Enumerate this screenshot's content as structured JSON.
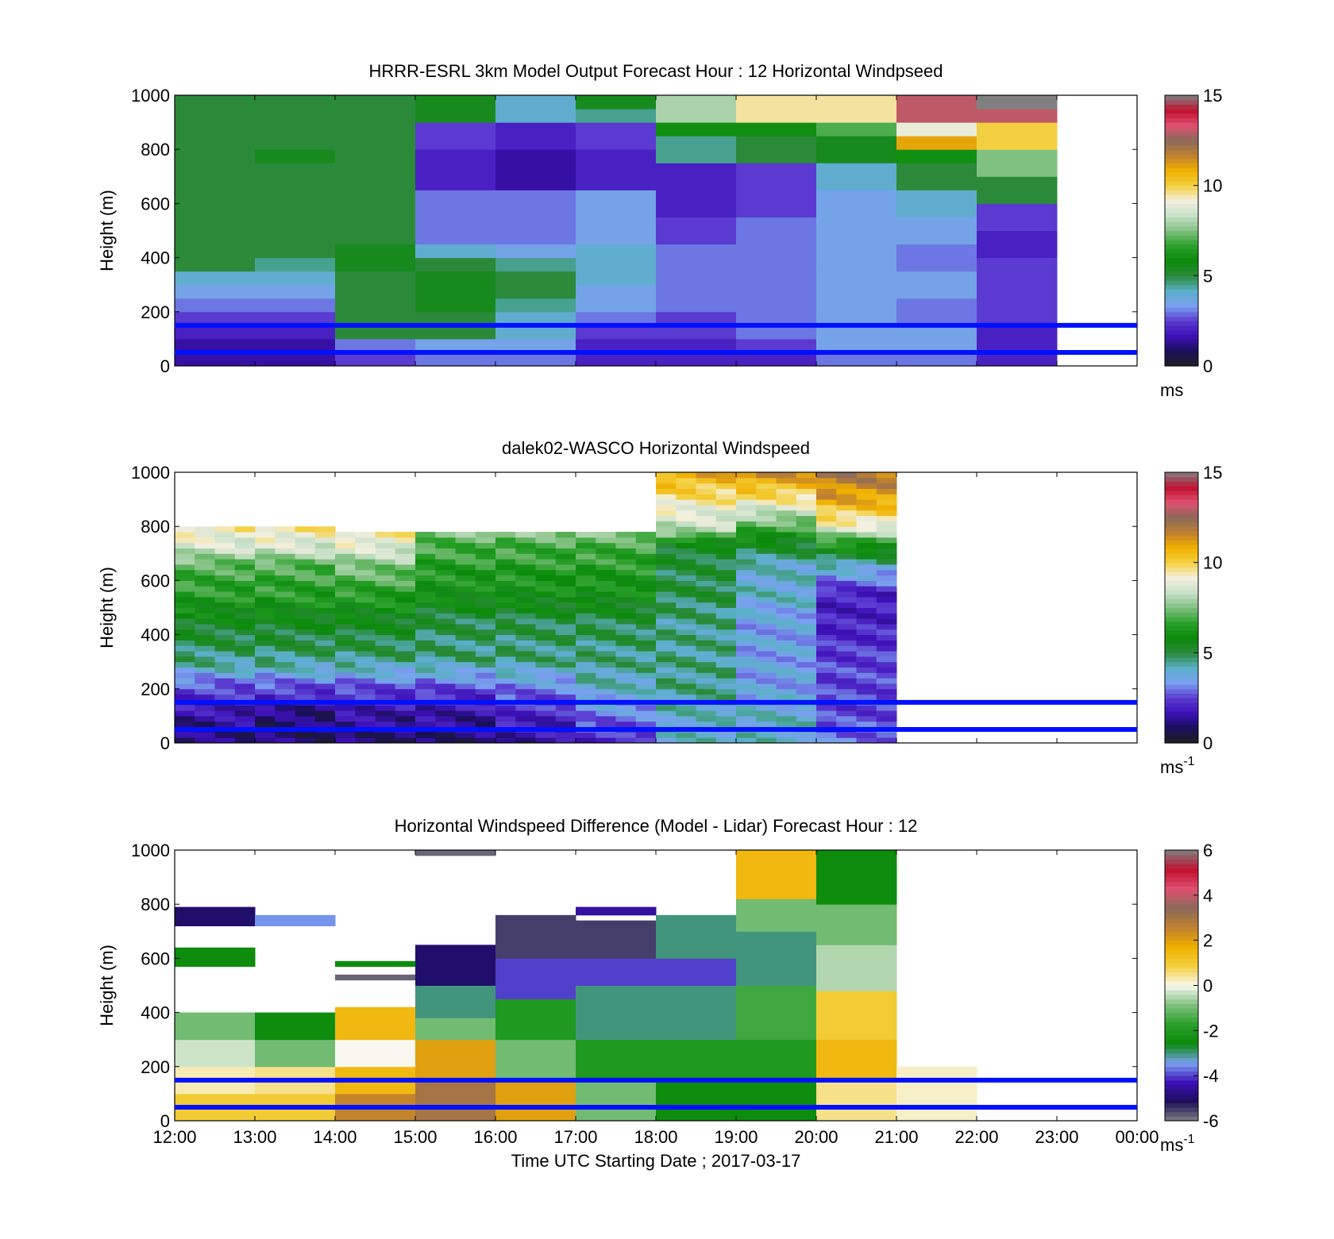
{
  "colors": {
    "reference_lines": "#0010ff",
    "speed_colormap": [
      "#202020",
      "#1a0f5a",
      "#3d10b8",
      "#5a3ad0",
      "#7aa0f0",
      "#5ab0c8",
      "#2a8a3a",
      "#0a8a0a",
      "#2aa02a",
      "#80c080",
      "#c8e0c8",
      "#f4f0e0",
      "#f4d040",
      "#f0b000",
      "#c08030",
      "#8a6a5a",
      "#e05070",
      "#c01030",
      "#808080"
    ],
    "diff_colormap": [
      "#808080",
      "#1a0f5a",
      "#3d10b8",
      "#7aa0f0",
      "#0a8a0a",
      "#2aa02a",
      "#80c080",
      "#f8f8f0",
      "#f4d040",
      "#f0b000",
      "#c08030",
      "#8a6a5a",
      "#e05070",
      "#c01030",
      "#808080"
    ]
  },
  "chart_data": [
    {
      "type": "heatmap",
      "title": "HRRR-ESRL 3km Model Output   Forecast Hour : 12 Horizontal Windpseed",
      "ylabel": "Height (m)",
      "ylim": [
        0,
        1000
      ],
      "yticks": [
        "0",
        "200",
        "400",
        "600",
        "800",
        "1000"
      ],
      "x": [
        "12:00",
        "13:00",
        "14:00",
        "15:00",
        "16:00",
        "17:00",
        "18:00",
        "19:00",
        "20:00",
        "21:00",
        "22:00"
      ],
      "heights": [
        0,
        50,
        100,
        150,
        200,
        250,
        300,
        350,
        400,
        450,
        500,
        550,
        600,
        650,
        700,
        750,
        800,
        850,
        900,
        950
      ],
      "colorbar": {
        "min": 0,
        "max": 15,
        "ticks": [
          "0",
          "5",
          "10",
          "15"
        ],
        "unit": "ms"
      },
      "reference_lines_m": [
        150,
        50
      ],
      "values": [
        [
          1.5,
          1.5,
          2.0,
          2.5,
          3.0,
          3.5,
          4.0,
          5.0,
          5.0,
          5.0,
          5.0,
          5.0,
          5.0,
          5.0,
          5.0,
          5.0,
          5.0,
          5.0,
          5.0,
          5.0
        ],
        [
          1.5,
          1.5,
          2.0,
          2.5,
          3.0,
          3.5,
          4.0,
          4.5,
          5.0,
          5.0,
          5.0,
          5.0,
          5.0,
          5.0,
          5.0,
          5.5,
          5.0,
          5.0,
          5.0,
          5.0
        ],
        [
          2.5,
          3.0,
          5.0,
          5.0,
          5.0,
          5.0,
          5.0,
          5.5,
          5.5,
          5.0,
          5.0,
          5.0,
          5.0,
          5.0,
          5.0,
          5.0,
          5.0,
          5.0,
          5.0,
          5.0
        ],
        [
          3.0,
          3.5,
          5.0,
          5.0,
          5.5,
          5.5,
          5.5,
          5.0,
          4.0,
          3.0,
          3.0,
          3.0,
          3.0,
          2.0,
          2.0,
          2.0,
          2.5,
          2.5,
          5.5,
          5.5
        ],
        [
          3.0,
          3.5,
          4.0,
          4.0,
          4.5,
          5.0,
          5.0,
          4.5,
          3.5,
          3.0,
          3.0,
          3.0,
          3.0,
          1.5,
          1.5,
          1.5,
          2.0,
          2.0,
          4.0,
          4.0
        ],
        [
          2.0,
          2.0,
          2.5,
          3.0,
          3.5,
          3.5,
          4.0,
          4.0,
          4.0,
          3.5,
          3.5,
          3.5,
          3.5,
          2.0,
          2.0,
          2.0,
          2.5,
          2.5,
          4.5,
          5.5
        ],
        [
          2.0,
          2.0,
          2.5,
          2.5,
          3.0,
          3.0,
          3.0,
          3.0,
          3.0,
          2.5,
          2.5,
          2.0,
          2.0,
          2.0,
          2.0,
          4.5,
          4.5,
          6.0,
          8.0,
          8.0
        ],
        [
          2.0,
          2.5,
          3.0,
          3.0,
          3.0,
          3.0,
          3.0,
          3.0,
          3.0,
          3.0,
          3.0,
          2.5,
          2.5,
          2.5,
          2.5,
          5.0,
          5.0,
          6.0,
          9.5,
          9.5
        ],
        [
          3.0,
          3.5,
          3.5,
          3.5,
          3.5,
          3.5,
          3.5,
          3.5,
          3.5,
          3.5,
          3.5,
          3.5,
          3.5,
          4.0,
          4.0,
          5.5,
          5.5,
          7.0,
          9.5,
          9.5
        ],
        [
          3.0,
          3.5,
          3.5,
          3.0,
          3.0,
          3.5,
          3.5,
          3.0,
          3.0,
          3.5,
          3.5,
          4.0,
          4.0,
          5.0,
          5.0,
          6.0,
          11.0,
          9.0,
          13.0,
          13.0
        ],
        [
          2.0,
          2.0,
          2.0,
          2.5,
          2.5,
          2.5,
          2.5,
          2.5,
          2.0,
          2.0,
          2.5,
          2.5,
          5.0,
          5.0,
          7.5,
          7.5,
          10.0,
          10.0,
          13.0,
          15.0
        ]
      ]
    },
    {
      "type": "heatmap",
      "title": "dalek02-WASCO  Horizontal Windspeed",
      "ylabel": "Height (m)",
      "ylim": [
        0,
        1000
      ],
      "yticks": [
        "0",
        "200",
        "400",
        "600",
        "800",
        "1000"
      ],
      "x_range_hours": [
        12,
        21
      ],
      "colorbar": {
        "min": 0,
        "max": 15,
        "ticks": [
          "0",
          "5",
          "10",
          "15"
        ],
        "unit": "ms",
        "unit_exponent": "-1"
      },
      "reference_lines_m": [
        150,
        50
      ],
      "profiles": [
        {
          "hour": 12,
          "speeds_by_height": [
            [
              0,
              1.0
            ],
            [
              100,
              1.5
            ],
            [
              200,
              2.5
            ],
            [
              300,
              4.5
            ],
            [
              450,
              5.5
            ],
            [
              550,
              6.5
            ],
            [
              650,
              7.0
            ],
            [
              720,
              8.5
            ],
            [
              800,
              9.5
            ]
          ]
        },
        {
          "hour": 13,
          "speeds_by_height": [
            [
              0,
              1.0
            ],
            [
              100,
              1.0
            ],
            [
              200,
              2.5
            ],
            [
              300,
              4.5
            ],
            [
              450,
              5.5
            ],
            [
              550,
              6.5
            ],
            [
              650,
              7.0
            ],
            [
              720,
              8.5
            ],
            [
              790,
              9.5
            ]
          ]
        },
        {
          "hour": 14,
          "speeds_by_height": [
            [
              0,
              1.0
            ],
            [
              100,
              1.5
            ],
            [
              200,
              2.5
            ],
            [
              300,
              4.5
            ],
            [
              450,
              5.5
            ],
            [
              550,
              6.5
            ],
            [
              650,
              7.5
            ],
            [
              740,
              9.0
            ],
            [
              780,
              9.5
            ]
          ]
        },
        {
          "hour": 15,
          "speeds_by_height": [
            [
              0,
              1.0
            ],
            [
              100,
              1.5
            ],
            [
              200,
              2.5
            ],
            [
              300,
              4.5
            ],
            [
              450,
              5.0
            ],
            [
              550,
              6.0
            ],
            [
              650,
              6.5
            ],
            [
              740,
              7.0
            ],
            [
              770,
              7.5
            ]
          ]
        },
        {
          "hour": 16,
          "speeds_by_height": [
            [
              0,
              1.5
            ],
            [
              100,
              2.0
            ],
            [
              200,
              3.0
            ],
            [
              300,
              4.5
            ],
            [
              450,
              5.0
            ],
            [
              550,
              6.0
            ],
            [
              650,
              6.5
            ],
            [
              740,
              7.0
            ],
            [
              770,
              7.5
            ]
          ]
        },
        {
          "hour": 17,
          "speeds_by_height": [
            [
              0,
              2.0
            ],
            [
              100,
              3.0
            ],
            [
              200,
              4.0
            ],
            [
              300,
              4.5
            ],
            [
              450,
              5.0
            ],
            [
              550,
              6.0
            ],
            [
              650,
              6.5
            ],
            [
              740,
              7.0
            ],
            [
              770,
              7.5
            ]
          ]
        },
        {
          "hour": 18,
          "speeds_by_height": [
            [
              0,
              4.0
            ],
            [
              100,
              4.0
            ],
            [
              200,
              4.5
            ],
            [
              300,
              4.5
            ],
            [
              450,
              4.5
            ],
            [
              550,
              5.0
            ],
            [
              650,
              5.0
            ],
            [
              740,
              5.5
            ],
            [
              780,
              8.0
            ],
            [
              900,
              9.5
            ],
            [
              1000,
              11.0
            ]
          ]
        },
        {
          "hour": 19,
          "speeds_by_height": [
            [
              0,
              4.0
            ],
            [
              100,
              4.0
            ],
            [
              200,
              3.5
            ],
            [
              300,
              3.5
            ],
            [
              450,
              3.5
            ],
            [
              550,
              4.0
            ],
            [
              650,
              4.0
            ],
            [
              740,
              5.5
            ],
            [
              800,
              7.0
            ],
            [
              900,
              9.5
            ],
            [
              1000,
              11.5
            ]
          ]
        },
        {
          "hour": 20,
          "speeds_by_height": [
            [
              0,
              3.0
            ],
            [
              100,
              2.5
            ],
            [
              200,
              2.5
            ],
            [
              300,
              2.5
            ],
            [
              450,
              2.0
            ],
            [
              550,
              2.0
            ],
            [
              650,
              4.0
            ],
            [
              740,
              6.5
            ],
            [
              800,
              9.0
            ],
            [
              900,
              11.0
            ],
            [
              1000,
              12.0
            ]
          ]
        }
      ]
    },
    {
      "type": "heatmap",
      "title": "Horizontal Windspeed Difference (Model - Lidar) Forecast Hour : 12",
      "ylabel": "Height (m)",
      "xlabel": "Time UTC  Starting Date ; 2017-03-17",
      "ylim": [
        0,
        1000
      ],
      "yticks": [
        "0",
        "200",
        "400",
        "600",
        "800",
        "1000"
      ],
      "xticks": [
        "12:00",
        "13:00",
        "14:00",
        "15:00",
        "16:00",
        "17:00",
        "18:00",
        "19:00",
        "20:00",
        "21:00",
        "22:00",
        "23:00",
        "00:00"
      ],
      "colorbar": {
        "min": -6,
        "max": 6,
        "ticks": [
          "-6",
          "-4",
          "-2",
          "0",
          "2",
          "4",
          "6"
        ],
        "unit": "ms",
        "unit_exponent": "-1"
      },
      "reference_lines_m": [
        150,
        50
      ],
      "columns": [
        {
          "hour": 12,
          "segments": [
            [
              0,
              100,
              1.0
            ],
            [
              100,
              200,
              0.3
            ],
            [
              200,
              300,
              -0.3
            ],
            [
              300,
              400,
              -1.0
            ],
            [
              570,
              640,
              -2.5
            ],
            [
              720,
              790,
              -5.0
            ]
          ]
        },
        {
          "hour": 13,
          "segments": [
            [
              0,
              100,
              1.0
            ],
            [
              100,
              200,
              0.5
            ],
            [
              200,
              300,
              -1.0
            ],
            [
              300,
              400,
              -2.5
            ],
            [
              720,
              760,
              -3.5
            ]
          ]
        },
        {
          "hour": 14,
          "segments": [
            [
              0,
              100,
              2.5
            ],
            [
              100,
              200,
              1.5
            ],
            [
              200,
              300,
              0.0
            ],
            [
              300,
              420,
              1.5
            ],
            [
              520,
              540,
              -5.8
            ],
            [
              570,
              590,
              -2.5
            ]
          ]
        },
        {
          "hour": 15,
          "segments": [
            [
              0,
              150,
              3.0
            ],
            [
              150,
              300,
              2.0
            ],
            [
              300,
              380,
              -1.0
            ],
            [
              380,
              500,
              -3.0
            ],
            [
              500,
              650,
              -5.0
            ],
            [
              980,
              1000,
              -5.8
            ]
          ]
        },
        {
          "hour": 16,
          "segments": [
            [
              0,
              150,
              2.0
            ],
            [
              150,
              300,
              -1.0
            ],
            [
              300,
              450,
              -2.0
            ],
            [
              450,
              600,
              -4.0
            ],
            [
              600,
              760,
              -5.5
            ]
          ]
        },
        {
          "hour": 17,
          "segments": [
            [
              0,
              150,
              -1.0
            ],
            [
              150,
              300,
              -2.0
            ],
            [
              300,
              500,
              -3.0
            ],
            [
              500,
              600,
              -4.0
            ],
            [
              600,
              740,
              -5.5
            ],
            [
              760,
              790,
              -4.5
            ]
          ]
        },
        {
          "hour": 18,
          "segments": [
            [
              0,
              150,
              -2.5
            ],
            [
              150,
              300,
              -2.0
            ],
            [
              300,
              500,
              -3.0
            ],
            [
              500,
              600,
              -4.0
            ],
            [
              600,
              760,
              -3.0
            ]
          ]
        },
        {
          "hour": 19,
          "segments": [
            [
              0,
              150,
              -2.5
            ],
            [
              150,
              300,
              -2.0
            ],
            [
              300,
              500,
              -1.5
            ],
            [
              500,
              700,
              -3.0
            ],
            [
              700,
              820,
              -1.0
            ],
            [
              820,
              1000,
              1.5
            ]
          ]
        },
        {
          "hour": 20,
          "segments": [
            [
              0,
              150,
              0.5
            ],
            [
              150,
              300,
              1.5
            ],
            [
              300,
              480,
              1.0
            ],
            [
              480,
              650,
              -0.5
            ],
            [
              650,
              800,
              -1.0
            ],
            [
              800,
              1000,
              -2.5
            ]
          ]
        },
        {
          "hour": 21,
          "segments": [
            [
              0,
              200,
              0.2
            ]
          ]
        }
      ]
    }
  ]
}
